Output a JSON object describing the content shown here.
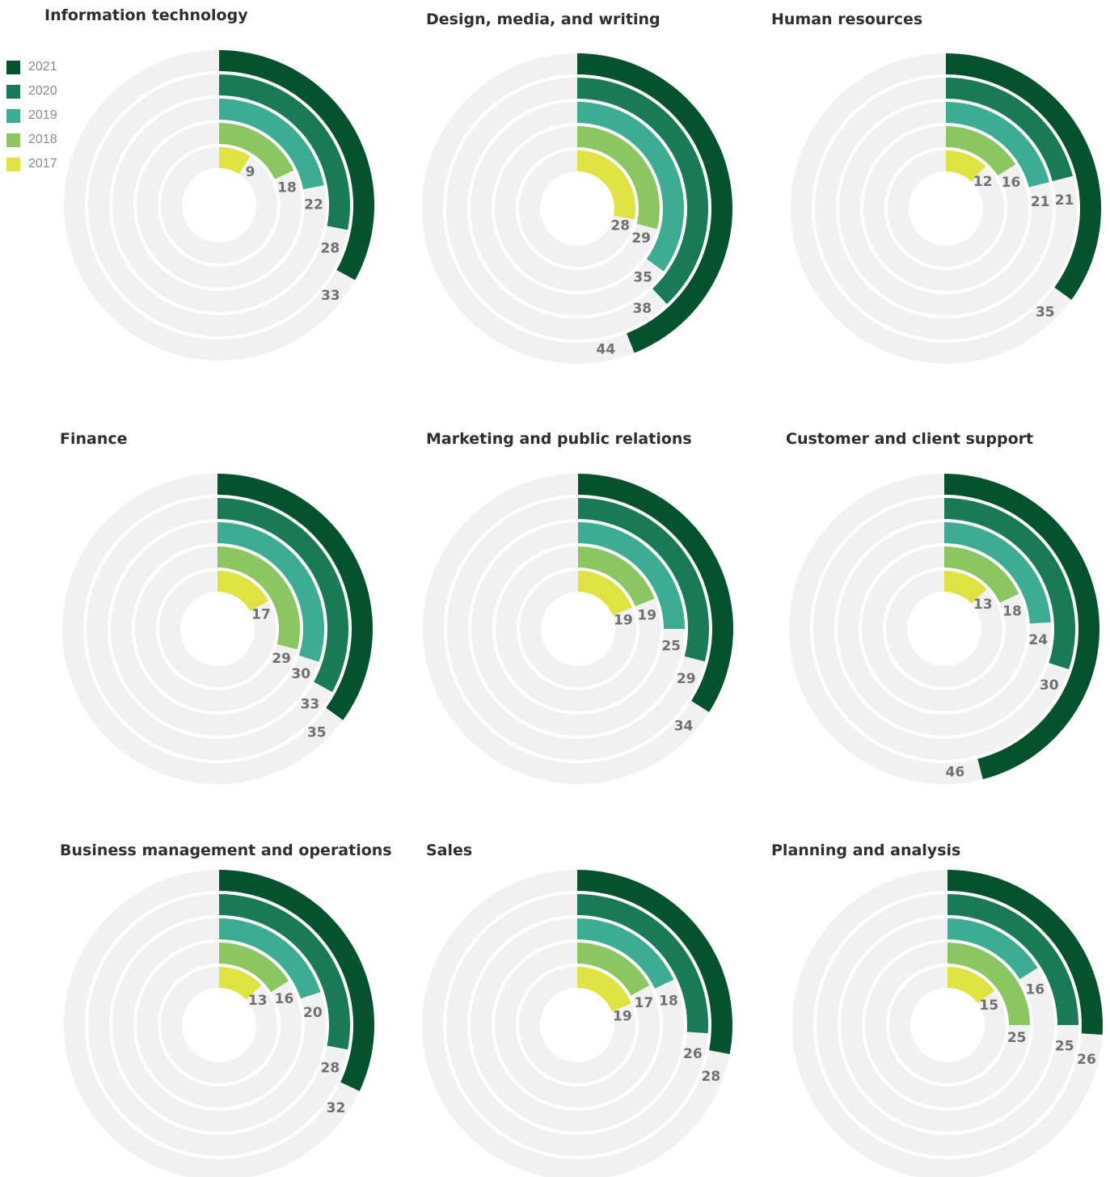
{
  "legend": {
    "items": [
      {
        "label": "2021",
        "color": "#06512e"
      },
      {
        "label": "2020",
        "color": "#1a7a58"
      },
      {
        "label": "2019",
        "color": "#3dac92"
      },
      {
        "label": "2018",
        "color": "#8cc662"
      },
      {
        "label": "2017",
        "color": "#dfe342"
      }
    ]
  },
  "chart_data": [
    {
      "type": "radial-bar",
      "title": "Information technology",
      "series": [
        "2017",
        "2018",
        "2019",
        "2020",
        "2021"
      ],
      "values": [
        9,
        18,
        22,
        28,
        33
      ],
      "max": 100
    },
    {
      "type": "radial-bar",
      "title": "Design, media, and writing",
      "series": [
        "2017",
        "2018",
        "2019",
        "2020",
        "2021"
      ],
      "values": [
        28,
        29,
        35,
        38,
        44
      ],
      "max": 100
    },
    {
      "type": "radial-bar",
      "title": "Human resources",
      "series": [
        "2017",
        "2018",
        "2019",
        "2020",
        "2021"
      ],
      "values": [
        12,
        16,
        21,
        21,
        35
      ],
      "max": 100
    },
    {
      "type": "radial-bar",
      "title": "Finance",
      "series": [
        "2017",
        "2018",
        "2019",
        "2020",
        "2021"
      ],
      "values": [
        17,
        29,
        30,
        33,
        35
      ],
      "max": 100
    },
    {
      "type": "radial-bar",
      "title": "Marketing and public relations",
      "series": [
        "2017",
        "2018",
        "2019",
        "2020",
        "2021"
      ],
      "values": [
        19,
        19,
        25,
        29,
        34
      ],
      "max": 100
    },
    {
      "type": "radial-bar",
      "title": "Customer and client support",
      "series": [
        "2017",
        "2018",
        "2019",
        "2020",
        "2021"
      ],
      "values": [
        13,
        18,
        24,
        30,
        46
      ],
      "max": 100
    },
    {
      "type": "radial-bar",
      "title": "Business management and operations",
      "series": [
        "2017",
        "2018",
        "2019",
        "2020",
        "2021"
      ],
      "values": [
        13,
        16,
        20,
        28,
        32
      ],
      "max": 100
    },
    {
      "type": "radial-bar",
      "title": "Sales",
      "series": [
        "2017",
        "2018",
        "2019",
        "2020",
        "2021"
      ],
      "values": [
        19,
        17,
        18,
        26,
        28
      ],
      "max": 100
    },
    {
      "type": "radial-bar",
      "title": "Planning and analysis",
      "series": [
        "2017",
        "2018",
        "2019",
        "2020",
        "2021"
      ],
      "values": [
        15,
        25,
        16,
        25,
        26
      ],
      "max": 100
    }
  ]
}
